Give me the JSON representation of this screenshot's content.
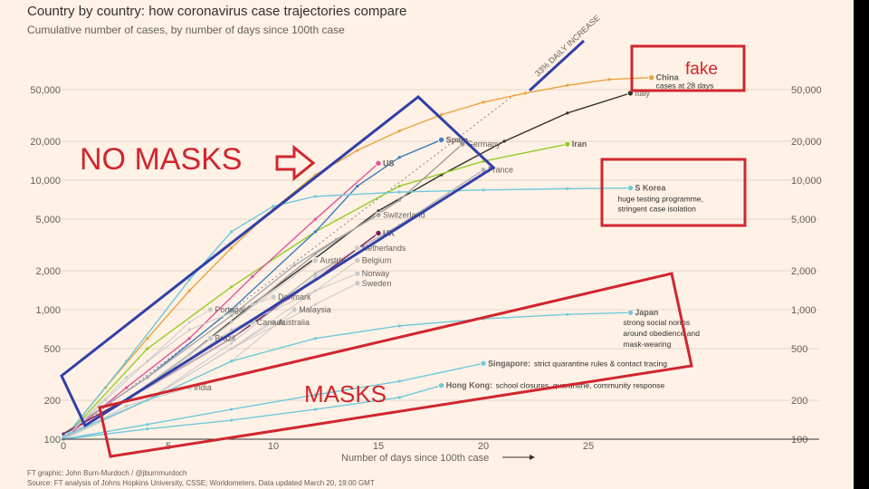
{
  "chart_data": {
    "type": "line",
    "title": "Country by country: how coronavirus case trajectories compare",
    "subtitle": "Cumulative number of cases, by number of days since 100th case",
    "xlabel": "Number of days since 100th case",
    "ylabel": "",
    "yscale": "log",
    "xlim": [
      0,
      35
    ],
    "ylim": [
      100,
      80000
    ],
    "xticks": [
      0,
      5,
      10,
      15,
      20,
      25
    ],
    "yticks": [
      100,
      200,
      500,
      1000,
      2000,
      5000,
      10000,
      20000,
      50000
    ],
    "ytick_labels": [
      "100",
      "200",
      "500",
      "1,000",
      "2,000",
      "5,000",
      "10,000",
      "20,000",
      "50,000"
    ],
    "reference_line_label": "33% DAILY INCREASE",
    "series": [
      {
        "name": "China",
        "color": "#e8a33d",
        "x": [
          0,
          2,
          4,
          6,
          8,
          10,
          12,
          14,
          16,
          18,
          20,
          22,
          24,
          26,
          28
        ],
        "y": [
          100,
          250,
          600,
          1400,
          3000,
          6000,
          11000,
          17000,
          24000,
          32000,
          40000,
          47000,
          54000,
          60000,
          62000
        ]
      },
      {
        "name": "Italy",
        "color": "#33302e",
        "x": [
          0,
          3,
          6,
          9,
          12,
          15,
          18,
          21,
          24,
          27
        ],
        "y": [
          100,
          200,
          450,
          1100,
          2500,
          5800,
          11000,
          20000,
          33000,
          47000
        ]
      },
      {
        "name": "Iran",
        "color": "#96cc28",
        "x": [
          0,
          4,
          8,
          12,
          16,
          20,
          24
        ],
        "y": [
          100,
          500,
          1500,
          4000,
          9000,
          14000,
          19000
        ]
      },
      {
        "name": "Spain",
        "color": "#3a7cc0",
        "x": [
          0,
          4,
          8,
          12,
          14,
          16,
          18
        ],
        "y": [
          110,
          300,
          1000,
          4000,
          9000,
          15000,
          20500
        ]
      },
      {
        "name": "Germany",
        "color": "#9f9f9f",
        "x": [
          0,
          4,
          8,
          12,
          16,
          19
        ],
        "y": [
          110,
          250,
          800,
          2700,
          7000,
          19000
        ]
      },
      {
        "name": "US",
        "color": "#e0559b",
        "x": [
          0,
          3,
          6,
          9,
          12,
          15
        ],
        "y": [
          100,
          250,
          600,
          1800,
          5000,
          13500
        ]
      },
      {
        "name": "France",
        "color": "#b3b3b3",
        "x": [
          0,
          4,
          8,
          12,
          16,
          20
        ],
        "y": [
          100,
          250,
          600,
          1900,
          4500,
          12000
        ]
      },
      {
        "name": "S Korea",
        "color": "#6fc9da",
        "x": [
          0,
          3,
          6,
          8,
          10,
          12,
          16,
          20,
          24,
          27
        ],
        "y": [
          100,
          400,
          1700,
          4000,
          6300,
          7500,
          8100,
          8400,
          8600,
          8700
        ]
      },
      {
        "name": "Switzerland",
        "color": "#a9a9a9",
        "x": [
          0,
          4,
          8,
          11,
          13,
          15
        ],
        "y": [
          110,
          300,
          900,
          2200,
          3500,
          5400
        ]
      },
      {
        "name": "UK",
        "color": "#7a1e5a",
        "x": [
          0,
          4,
          8,
          12,
          15
        ],
        "y": [
          110,
          250,
          600,
          1700,
          3900
        ]
      },
      {
        "name": "Netherlands",
        "color": "#c9c9c9",
        "x": [
          0,
          4,
          8,
          12,
          14
        ],
        "y": [
          100,
          200,
          550,
          1800,
          3000
        ]
      },
      {
        "name": "Austria",
        "color": "#c9c9c9",
        "x": [
          0,
          4,
          8,
          12
        ],
        "y": [
          100,
          250,
          800,
          2400
        ]
      },
      {
        "name": "Belgium",
        "color": "#c9c9c9",
        "x": [
          0,
          4,
          8,
          12,
          14
        ],
        "y": [
          100,
          200,
          500,
          1400,
          2400
        ]
      },
      {
        "name": "Norway",
        "color": "#c9c9c9",
        "x": [
          0,
          4,
          8,
          12,
          14
        ],
        "y": [
          100,
          250,
          700,
          1400,
          1900
        ]
      },
      {
        "name": "Sweden",
        "color": "#c9c9c9",
        "x": [
          0,
          4,
          8,
          12,
          14
        ],
        "y": [
          100,
          200,
          500,
          1100,
          1600
        ]
      },
      {
        "name": "Denmark",
        "color": "#c9c9c9",
        "x": [
          0,
          3,
          6,
          9,
          10
        ],
        "y": [
          100,
          300,
          700,
          1100,
          1250
        ]
      },
      {
        "name": "Portugal",
        "color": "#c9c9c9",
        "x": [
          0,
          2,
          4,
          6,
          7
        ],
        "y": [
          100,
          200,
          400,
          800,
          1000
        ]
      },
      {
        "name": "Malaysia",
        "color": "#c9c9c9",
        "x": [
          0,
          4,
          8,
          11
        ],
        "y": [
          100,
          200,
          400,
          1000
        ]
      },
      {
        "name": "Canada",
        "color": "#c9c9c9",
        "x": [
          0,
          4,
          8,
          9
        ],
        "y": [
          100,
          250,
          600,
          800
        ]
      },
      {
        "name": "Australia",
        "color": "#c9c9c9",
        "x": [
          0,
          4,
          8,
          10
        ],
        "y": [
          100,
          200,
          500,
          800
        ]
      },
      {
        "name": "Brazil",
        "color": "#c9c9c9",
        "x": [
          0,
          3,
          6,
          7
        ],
        "y": [
          100,
          200,
          450,
          600
        ]
      },
      {
        "name": "India",
        "color": "#c9c9c9",
        "x": [
          0,
          3,
          6
        ],
        "y": [
          100,
          180,
          250
        ]
      },
      {
        "name": "Japan",
        "color": "#6fc9da",
        "x": [
          0,
          4,
          8,
          12,
          16,
          20,
          24,
          27
        ],
        "y": [
          105,
          200,
          400,
          600,
          750,
          850,
          920,
          950
        ]
      },
      {
        "name": "Singapore",
        "color": "#6fc9da",
        "x": [
          0,
          4,
          8,
          12,
          16,
          20
        ],
        "y": [
          100,
          130,
          170,
          220,
          280,
          385
        ]
      },
      {
        "name": "Hong Kong",
        "color": "#6fc9da",
        "x": [
          0,
          4,
          8,
          12,
          16,
          18
        ],
        "y": [
          100,
          120,
          140,
          170,
          210,
          260
        ]
      }
    ],
    "series_labels": [
      {
        "name": "China",
        "text": "China"
      },
      {
        "name": "Italy",
        "text": "Italy"
      },
      {
        "name": "Iran",
        "text": "Iran"
      },
      {
        "name": "Spain",
        "text": "Spain"
      },
      {
        "name": "Germany",
        "text": "Germany"
      },
      {
        "name": "US",
        "text": "US"
      },
      {
        "name": "France",
        "text": "France"
      },
      {
        "name": "S Korea",
        "text": "S Korea"
      },
      {
        "name": "Switzerland",
        "text": "Switzerland"
      },
      {
        "name": "UK",
        "text": "UK"
      },
      {
        "name": "Netherlands",
        "text": "Netherlands"
      },
      {
        "name": "Austria",
        "text": "Austria"
      },
      {
        "name": "Belgium",
        "text": "Belgium"
      },
      {
        "name": "Norway",
        "text": "Norway"
      },
      {
        "name": "Sweden",
        "text": "Sweden"
      },
      {
        "name": "Denmark",
        "text": "Denmark"
      },
      {
        "name": "Portugal",
        "text": "Portugal"
      },
      {
        "name": "Malaysia",
        "text": "Malaysia"
      },
      {
        "name": "Canada",
        "text": "Canada"
      },
      {
        "name": "Australia",
        "text": "Australia"
      },
      {
        "name": "Brazil",
        "text": "Brazil"
      },
      {
        "name": "India",
        "text": "India"
      },
      {
        "name": "Japan",
        "text": "Japan"
      },
      {
        "name": "Singapore",
        "text": "Singapore:"
      },
      {
        "name": "Hong Kong",
        "text": "Hong Kong:"
      }
    ],
    "annotations": {
      "china": "cases at 28 days",
      "skorea": [
        "huge testing programme,",
        "stringent case isolation"
      ],
      "japan": [
        "strong social norms",
        "around obedience and",
        "mask-wearing"
      ],
      "singapore": "strict quarantine rules & contact tracing",
      "hongkong": "school closures, quarantine, community response"
    }
  },
  "footer": {
    "credit": "FT graphic: John Burn-Murdoch / @jburnmurdoch",
    "source": "Source: FT analysis of Johns Hopkins University, CSSE; Worldometers. Data updated March 20, 19:00 GMT"
  },
  "overlays": {
    "no_masks": "NO MASKS",
    "masks": "MASKS",
    "fake": "fake",
    "box_color_blue": "#3040a8",
    "box_color_red": "#d0262e"
  }
}
